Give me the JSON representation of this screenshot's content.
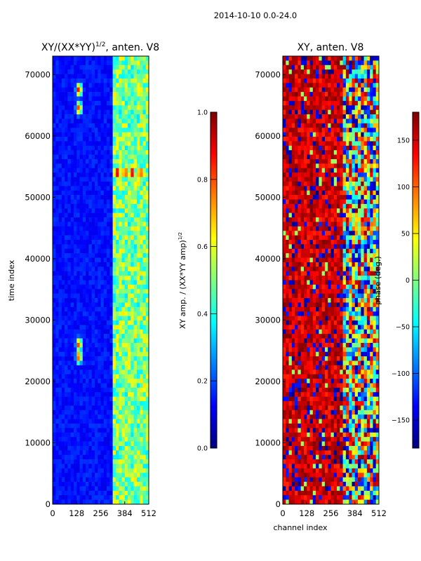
{
  "figure": {
    "suptitle": "2014-10-10 0.0-24.0",
    "colors": {
      "jet": [
        "#00007f",
        "#0000ff",
        "#007fff",
        "#00ffff",
        "#7fff7f",
        "#ffff00",
        "#ff7f00",
        "#ff0000",
        "#7f0000"
      ],
      "axis": "#000000",
      "background": "#ffffff"
    }
  },
  "chart_data": [
    {
      "type": "heatmap",
      "title": "XY/(XX*YY)",
      "title_exponent": "1/2",
      "title_suffix": ", anten. V8",
      "xlabel": "",
      "ylabel": "time index",
      "xlim": [
        0,
        512
      ],
      "ylim": [
        0,
        73000
      ],
      "xticks": [
        0,
        128,
        256,
        384,
        512
      ],
      "xtick_labels": [
        "0",
        "128",
        "256",
        "384",
        "512"
      ],
      "yticks": [
        0,
        10000,
        20000,
        30000,
        40000,
        50000,
        60000,
        70000
      ],
      "ytick_labels": [
        "0",
        "10000",
        "20000",
        "30000",
        "40000",
        "50000",
        "60000",
        "70000"
      ],
      "value_range": [
        0.0,
        1.0
      ],
      "description_regions": {
        "low_channels_value": 0.1,
        "high_channels_start": 320,
        "high_channels_value": 0.35,
        "hot_spots": [
          {
            "channel": 140,
            "time": 67500,
            "value": 0.9
          },
          {
            "channel": 140,
            "time": 64500,
            "value": 0.85
          },
          {
            "channel": 140,
            "time": 26000,
            "value": 0.85
          },
          {
            "channel": 140,
            "time": 24000,
            "value": 0.85
          },
          {
            "channel": 345,
            "time": 54000,
            "value": 0.95
          },
          {
            "channel": 385,
            "time": 54000,
            "value": 0.95
          },
          {
            "channel": 425,
            "time": 54000,
            "value": 0.95
          },
          {
            "channel": 465,
            "time": 54000,
            "value": 0.95
          }
        ]
      },
      "colorbar": {
        "label_main": "XY amp. / (XX*YY amp)",
        "label_exponent": "1/2",
        "range": [
          0.0,
          1.0
        ],
        "ticks": [
          0.0,
          0.2,
          0.4,
          0.6,
          0.8,
          1.0
        ],
        "tick_labels": [
          "0.0",
          "0.2",
          "0.4",
          "0.6",
          "0.8",
          "1.0"
        ]
      }
    },
    {
      "type": "heatmap",
      "title": "XY, anten. V8",
      "xlabel": "channel index",
      "ylabel": "",
      "xlim": [
        0,
        512
      ],
      "ylim": [
        0,
        73000
      ],
      "xticks": [
        0,
        128,
        256,
        384,
        512
      ],
      "xtick_labels": [
        "0",
        "128",
        "256",
        "384",
        "512"
      ],
      "yticks": [
        0,
        10000,
        20000,
        30000,
        40000,
        50000,
        60000,
        70000
      ],
      "ytick_labels": [
        "0",
        "10000",
        "20000",
        "30000",
        "40000",
        "50000",
        "60000",
        "70000"
      ],
      "value_range": [
        -180,
        180
      ],
      "description_regions": {
        "dominant_value": 150,
        "high_channels_start": 320,
        "gap_value": 0
      },
      "colorbar": {
        "label_main": "phase (deg.)",
        "range": [
          -180,
          180
        ],
        "ticks": [
          -150,
          -100,
          -50,
          0,
          50,
          100,
          150
        ],
        "tick_labels": [
          "−150",
          "−100",
          "−50",
          "0",
          "50",
          "100",
          "150"
        ]
      }
    }
  ]
}
